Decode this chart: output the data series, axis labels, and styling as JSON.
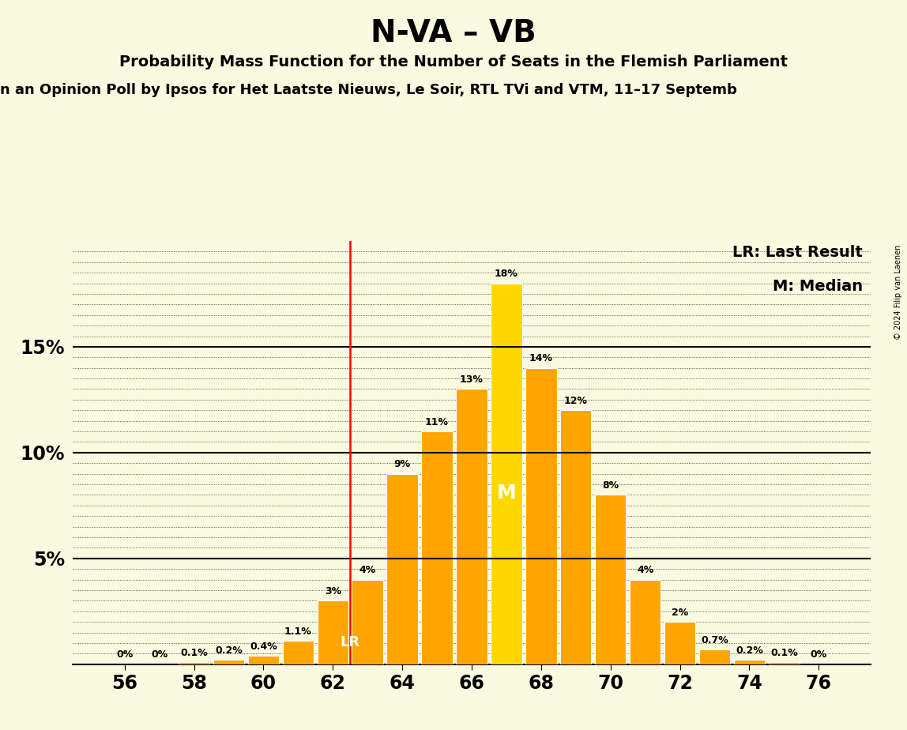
{
  "title": "N-VA – VB",
  "subtitle": "Probability Mass Function for the Number of Seats in the Flemish Parliament",
  "subtitle2": "n an Opinion Poll by Ipsos for Het Laatste Nieuws, Le Soir, RTL TVi and VTM, 11–17 Septemb",
  "copyright": "© 2024 Filip van Laenen",
  "seats": [
    56,
    57,
    58,
    59,
    60,
    61,
    62,
    63,
    64,
    65,
    66,
    67,
    68,
    69,
    70,
    71,
    72,
    73,
    74,
    75,
    76
  ],
  "probabilities": [
    0.0,
    0.0,
    0.1,
    0.2,
    0.4,
    1.1,
    3.0,
    4.0,
    9.0,
    11.0,
    13.0,
    18.0,
    14.0,
    12.0,
    8.0,
    4.0,
    2.0,
    0.7,
    0.2,
    0.1,
    0.0
  ],
  "bar_colors": [
    "#FFA500",
    "#FFA500",
    "#FFA500",
    "#FFA500",
    "#FFA500",
    "#FFA500",
    "#FFA500",
    "#FFA500",
    "#FFA500",
    "#FFA500",
    "#FFA500",
    "#FFD700",
    "#FFA500",
    "#FFA500",
    "#FFA500",
    "#FFA500",
    "#FFA500",
    "#FFA500",
    "#FFA500",
    "#FFA500",
    "#FFA500"
  ],
  "last_result": 62,
  "median": 67,
  "background_color": "#FAFAE0",
  "lr_label_color": "#FFFFFF",
  "m_label_color": "#FFFFFF",
  "xticks": [
    56,
    58,
    60,
    62,
    64,
    66,
    68,
    70,
    72,
    74,
    76
  ],
  "ylim": [
    0,
    20
  ],
  "legend_lr": "LR: Last Result",
  "legend_m": "M: Median",
  "bar_width": 0.9
}
